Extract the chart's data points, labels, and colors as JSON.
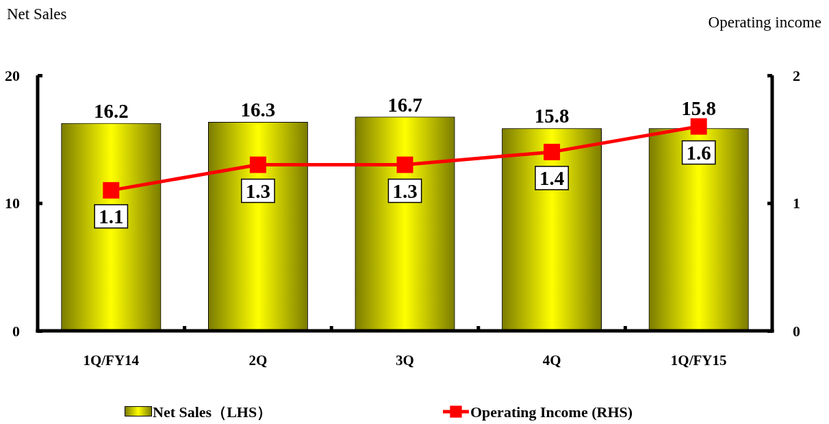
{
  "chart_data": {
    "type": "bar",
    "ylabel": "Net Sales",
    "y2label": "Operating income",
    "categories": [
      "1Q/FY14",
      "2Q",
      "3Q",
      "4Q",
      "1Q/FY15"
    ],
    "series": [
      {
        "name": "Net Sales（LHS）",
        "color": "#ffff00",
        "values": [
          16.2,
          16.3,
          16.7,
          15.8,
          15.8
        ]
      },
      {
        "name": "Operating Income (RHS)",
        "type": "line",
        "axis": "y2",
        "color": "#ff0000",
        "values": [
          1.1,
          1.3,
          1.3,
          1.4,
          1.6
        ]
      }
    ],
    "ylim": [
      0,
      20
    ],
    "yticks": [
      0,
      10,
      20
    ],
    "y2lim": [
      0,
      2
    ],
    "y2ticks": [
      0,
      1,
      2
    ],
    "data_labels": true,
    "legend": "bottom",
    "marker": "square",
    "line_style": "solid"
  }
}
